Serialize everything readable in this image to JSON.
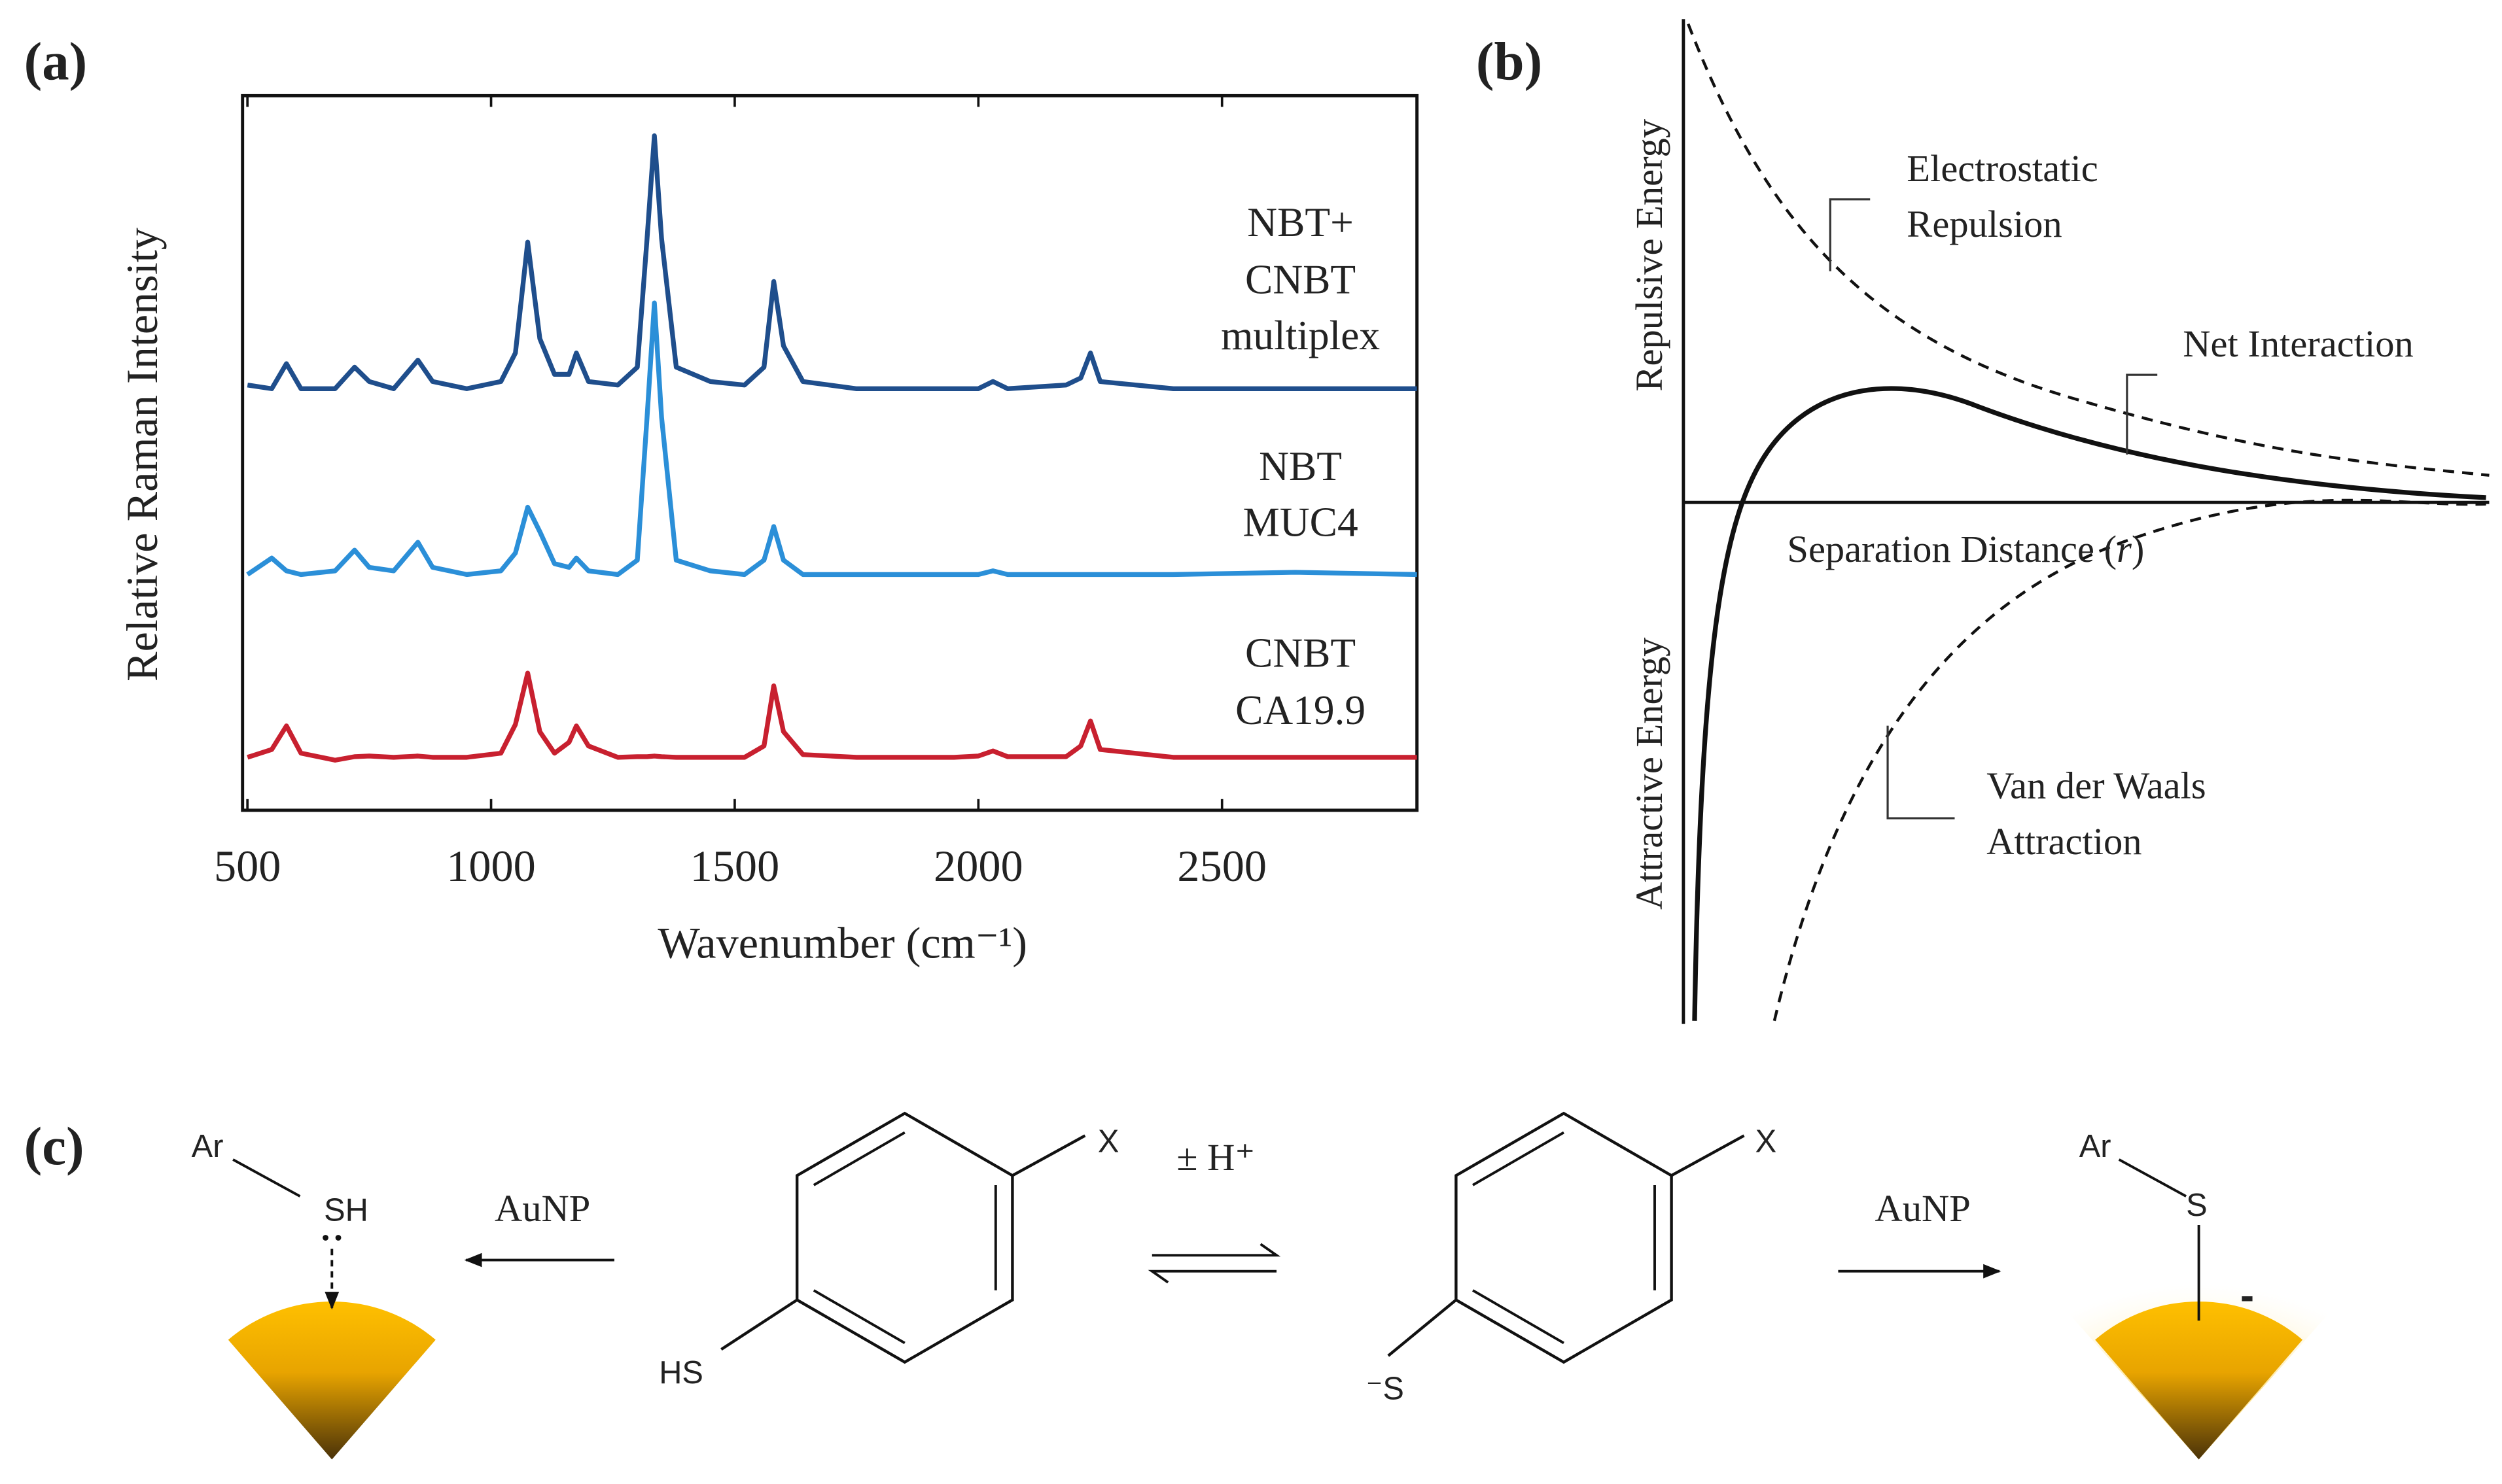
{
  "chart_data": {
    "type": "line",
    "panel_label": "(a)",
    "x_label": "Wavenumber (cm⁻¹)",
    "y_label": "Relative Raman Intensity",
    "x": [
      500,
      550,
      580,
      610,
      680,
      720,
      750,
      800,
      850,
      880,
      950,
      1020,
      1050,
      1075,
      1100,
      1130,
      1160,
      1175,
      1200,
      1260,
      1300,
      1320,
      1335,
      1350,
      1380,
      1450,
      1520,
      1560,
      1580,
      1600,
      1640,
      1750,
      1950,
      2000,
      2030,
      2060,
      2180,
      2210,
      2230,
      2250,
      2400,
      2650,
      2900
    ],
    "xlim": [
      490,
      2900
    ],
    "xticks": [
      500,
      1000,
      1500,
      2000,
      2500
    ],
    "ylim": [
      0,
      100
    ],
    "series": [
      {
        "name": [
          "NBT+",
          "CNBT",
          "multiplex"
        ],
        "color": "#1f4e8c",
        "values": [
          59.5,
          59,
          62.5,
          59,
          59,
          62,
          60,
          59,
          63,
          60,
          59,
          60,
          64,
          79.5,
          66,
          61,
          61,
          64,
          60,
          59.5,
          62,
          80,
          94.4,
          80,
          62,
          60,
          59.5,
          62,
          74,
          65,
          60,
          59,
          59,
          59,
          60,
          59,
          59.5,
          60.5,
          64,
          60,
          59,
          59,
          59
        ]
      },
      {
        "name": [
          "NBT",
          "MUC4"
        ],
        "color": "#2b8fd8",
        "values": [
          33,
          35.3,
          33.5,
          33,
          33.5,
          36.4,
          34,
          33.5,
          37.5,
          34,
          33,
          33.5,
          36,
          42.4,
          39,
          34.5,
          34,
          35.3,
          33.5,
          33,
          35,
          55,
          71,
          55,
          35,
          33.5,
          33,
          35,
          39.7,
          35,
          33,
          33,
          33,
          33,
          33.5,
          33,
          33,
          33,
          33,
          33,
          33,
          33.3,
          33
        ]
      },
      {
        "name": [
          "CNBT",
          "CA19.9"
        ],
        "color": "#c8202f",
        "values": [
          7.4,
          8.5,
          11.8,
          8,
          7,
          7.5,
          7.6,
          7.4,
          7.6,
          7.4,
          7.4,
          8,
          12,
          19.2,
          11,
          8,
          9.5,
          11.8,
          9,
          7.4,
          7.5,
          7.5,
          7.6,
          7.5,
          7.4,
          7.4,
          7.4,
          9,
          17.4,
          11,
          7.8,
          7.4,
          7.4,
          7.6,
          8.3,
          7.5,
          7.5,
          9,
          12.5,
          8.5,
          7.4,
          7.4,
          7.4
        ]
      }
    ]
  },
  "diagram_b": {
    "panel_label": "(b)",
    "y_label_top": "Repulsive Energy",
    "y_label_bottom": "Attractive Energy",
    "x_label_parts": [
      "Separation Distance (",
      "r",
      ")"
    ],
    "electrostatic": [
      "Electrostatic",
      "Repulsion"
    ],
    "net": "Net Interaction",
    "vdw": [
      "Van der Waals",
      "Attraction"
    ]
  },
  "scheme_c": {
    "panel_label": "(c)",
    "ar_left": "Ar",
    "sh_left": "SH",
    "reagent_left": "AuNP",
    "x_left": "X",
    "hs": "HS",
    "equilibrium": "± H⁺",
    "x_right": "X",
    "thiolate": "⁻S",
    "reagent_right": "AuNP",
    "ar_right": "Ar",
    "s_right": "S",
    "charge": "-"
  }
}
